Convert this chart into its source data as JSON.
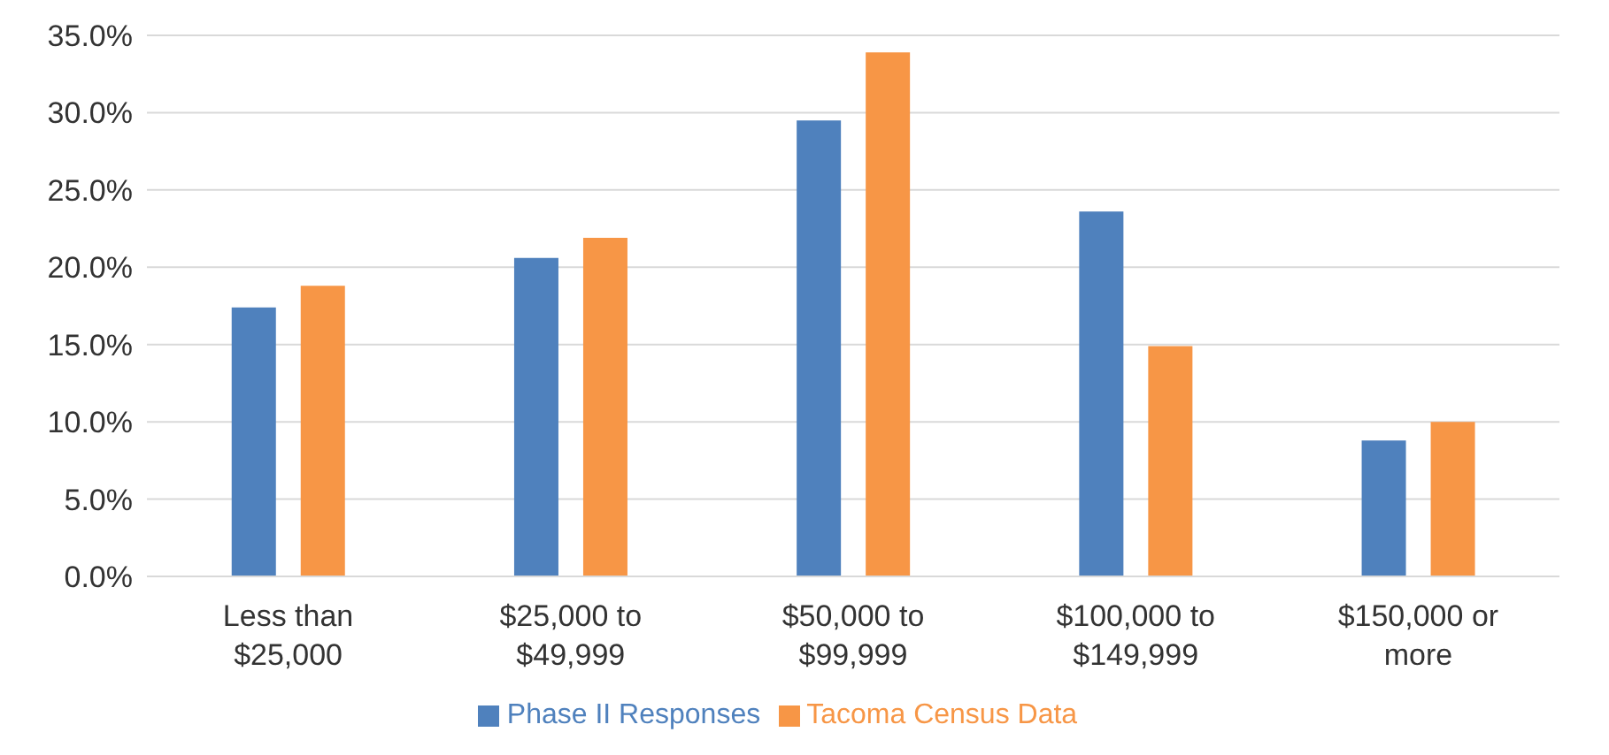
{
  "chart_data": {
    "type": "bar",
    "categories": [
      "Less than\n$25,000",
      "$25,000 to\n$49,999",
      "$50,000 to\n$99,999",
      "$100,000 to\n$149,999",
      "$150,000 or\nmore"
    ],
    "series": [
      {
        "name": "Phase II Responses",
        "color": "#4f81bd",
        "values": [
          17.4,
          20.6,
          29.5,
          23.6,
          8.8
        ]
      },
      {
        "name": "Tacoma Census Data",
        "color": "#f79646",
        "values": [
          18.8,
          21.9,
          33.9,
          14.9,
          10.0
        ]
      }
    ],
    "ylim": [
      0,
      35
    ],
    "yticks": [
      {
        "value": 0,
        "label": "0.0%"
      },
      {
        "value": 5,
        "label": "5.0%"
      },
      {
        "value": 10,
        "label": "10.0%"
      },
      {
        "value": 15,
        "label": "15.0%"
      },
      {
        "value": 20,
        "label": "20.0%"
      },
      {
        "value": 25,
        "label": "25.0%"
      },
      {
        "value": 30,
        "label": "30.0%"
      },
      {
        "value": 35,
        "label": "35.0%"
      }
    ],
    "grid": "y",
    "legend": "bottom"
  }
}
